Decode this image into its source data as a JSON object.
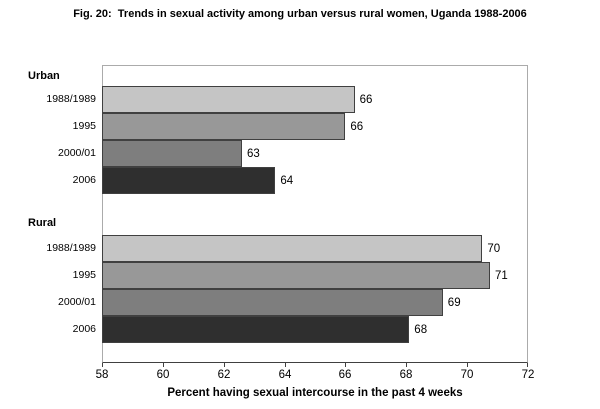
{
  "chart_data": {
    "type": "bar",
    "orientation": "horizontal",
    "title": "Fig. 20:  Trends in sexual activity among urban versus rural women, Uganda 1988-2006",
    "xlabel": "Percent having sexual intercourse in the past 4 weeks",
    "xlim": [
      58,
      72
    ],
    "xticks": [
      58,
      60,
      62,
      64,
      66,
      68,
      70,
      72
    ],
    "grid": false,
    "legend": "none",
    "groups": [
      {
        "name": "Urban",
        "bars": [
          {
            "period": "1988/1989",
            "label": "66",
            "value": 66,
            "plot_value": 66.3,
            "color": "#c5c5c5"
          },
          {
            "period": "1995",
            "label": "66",
            "value": 66,
            "plot_value": 66.0,
            "color": "#989898"
          },
          {
            "period": "2000/01",
            "label": "63",
            "value": 63,
            "plot_value": 62.6,
            "color": "#7e7e7e"
          },
          {
            "period": "2006",
            "label": "64",
            "value": 64,
            "plot_value": 63.7,
            "color": "#2f2f2f"
          }
        ]
      },
      {
        "name": "Rural",
        "bars": [
          {
            "period": "1988/1989",
            "label": "70",
            "value": 70,
            "plot_value": 70.5,
            "color": "#c5c5c5"
          },
          {
            "period": "1995",
            "label": "71",
            "value": 71,
            "plot_value": 70.75,
            "color": "#989898"
          },
          {
            "period": "2000/01",
            "label": "69",
            "value": 69,
            "plot_value": 69.2,
            "color": "#7e7e7e"
          },
          {
            "period": "2006",
            "label": "68",
            "value": 68,
            "plot_value": 68.1,
            "color": "#2f2f2f"
          }
        ]
      }
    ],
    "colors": {
      "bar_border": "#404040",
      "plot_border": "#ababab",
      "axis_line": "#404040",
      "text": "#000000",
      "background": "#ffffff"
    }
  }
}
